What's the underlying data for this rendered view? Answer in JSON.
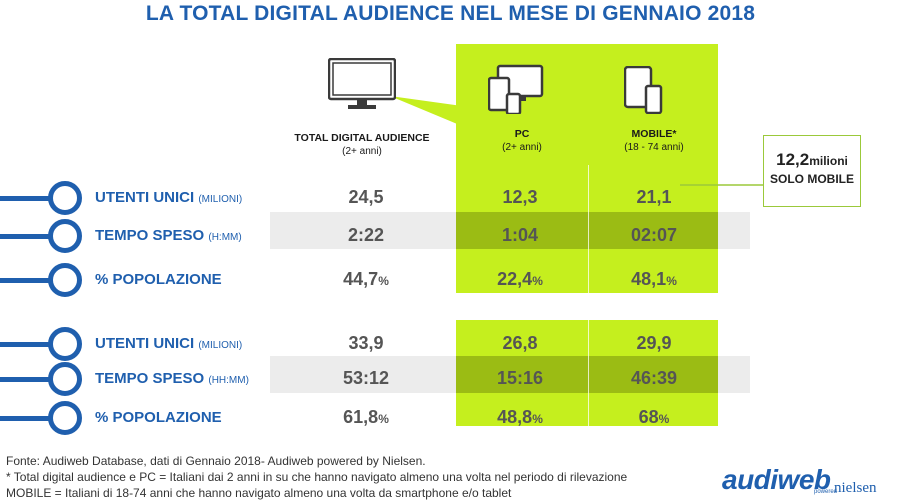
{
  "title": "LA TOTAL DIGITAL AUDIENCE NEL MESE DI GENNAIO 2018",
  "columns": [
    {
      "label": "TOTAL DIGITAL AUDIENCE",
      "sub": "(2+ anni)"
    },
    {
      "label": "PC",
      "sub": "(2+ anni)"
    },
    {
      "label": "MOBILE*",
      "sub": "(18 - 74 anni)"
    }
  ],
  "rows": [
    {
      "label": "UTENTI UNICI",
      "unit": "(MILIONI)",
      "values": [
        "24,5",
        "12,3",
        "21,1"
      ],
      "pct": false
    },
    {
      "label": "TEMPO SPESO",
      "unit": "(H:MM)",
      "values": [
        "2:22",
        "1:04",
        "02:07"
      ],
      "pct": false
    },
    {
      "label": "% POPOLAZIONE",
      "unit": "",
      "values": [
        "44,7",
        "22,4",
        "48,1"
      ],
      "pct": true
    },
    {
      "label": "UTENTI UNICI",
      "unit": "(MILIONI)",
      "values": [
        "33,9",
        "26,8",
        "29,9"
      ],
      "pct": false
    },
    {
      "label": "TEMPO SPESO",
      "unit": "(HH:MM)",
      "values": [
        "53:12",
        "15:16",
        "46:39"
      ],
      "pct": false
    },
    {
      "label": "% POPOLAZIONE",
      "unit": "",
      "values": [
        "61,8",
        "48,8",
        "68"
      ],
      "pct": true
    }
  ],
  "pct_sign": "%",
  "callout": {
    "value": "12,2",
    "unit": "milioni",
    "label": "SOLO MOBILE"
  },
  "footnotes": [
    "Fonte: Audiweb Database, dati di Gennaio 2018- Audiweb powered by Nielsen.",
    "* Total digital audience e PC = Italiani dai 2 anni in su che hanno navigato almeno una volta nel periodo di rilevazione",
    "MOBILE = Italiani di 18-74 anni che hanno navigato almeno una volta da smartphone e/o tablet"
  ],
  "logo": {
    "brand": "audiweb",
    "powered": "powered",
    "partner": "nielsen"
  },
  "colors": {
    "blue": "#1f5fae",
    "green": "#c5ef1e",
    "green_dark": "#9bbc14",
    "grey_band": "#ececec"
  },
  "icons": [
    "monitor-icon",
    "devices-icon",
    "mobile-devices-icon"
  ]
}
